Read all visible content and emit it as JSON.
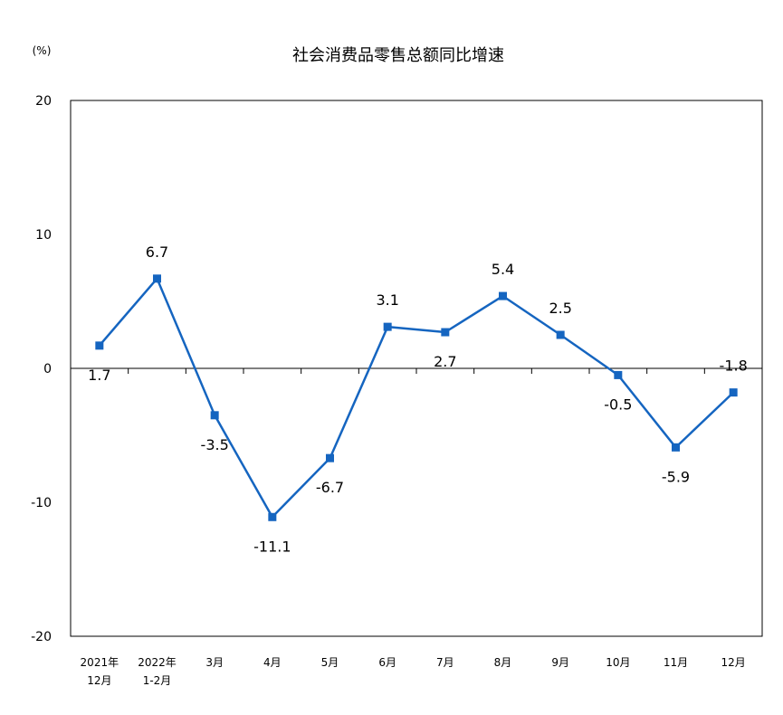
{
  "chart_data": {
    "type": "line",
    "title": "社会消费品零售总额同比增速",
    "unit_label": "(%)",
    "ylim": [
      -20,
      20
    ],
    "yticks": [
      "20",
      "10",
      "0",
      "-10",
      "-20"
    ],
    "grid": false,
    "categories": [
      [
        "2021年",
        "12月"
      ],
      [
        "2022年",
        "1-2月"
      ],
      [
        "3月"
      ],
      [
        "4月"
      ],
      [
        "5月"
      ],
      [
        "6月"
      ],
      [
        "7月"
      ],
      [
        "8月"
      ],
      [
        "9月"
      ],
      [
        "10月"
      ],
      [
        "11月"
      ],
      [
        "12月"
      ]
    ],
    "series": [
      {
        "color": "#1565c0",
        "values": [
          1.7,
          6.7,
          -3.5,
          -11.1,
          -6.7,
          3.1,
          2.7,
          5.4,
          2.5,
          -0.5,
          -5.9,
          -1.8
        ],
        "labels": [
          "1.7",
          "6.7",
          "-3.5",
          "-11.1",
          "-6.7",
          "3.1",
          "2.7",
          "5.4",
          "2.5",
          "-0.5",
          "-5.9",
          "-1.8"
        ]
      }
    ]
  }
}
